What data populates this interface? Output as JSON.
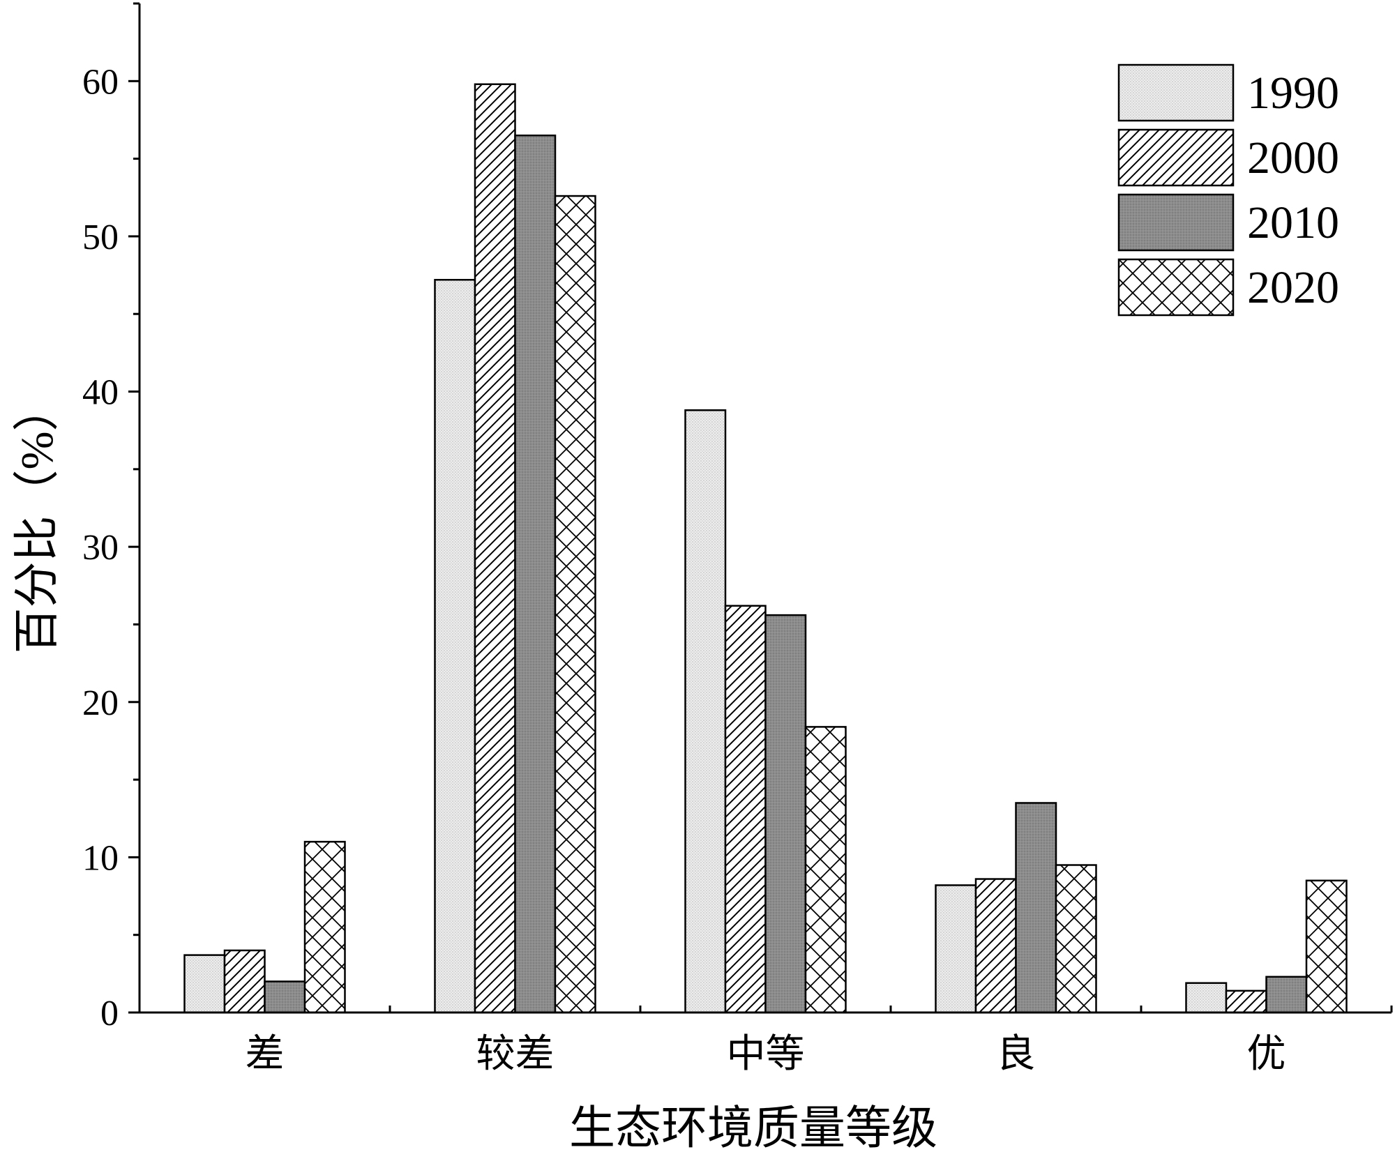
{
  "chart_data": {
    "type": "bar",
    "title": "",
    "xlabel": "生态环境质量等级",
    "ylabel": "百分比（%）",
    "categories": [
      "差",
      "较差",
      "中等",
      "良",
      "优"
    ],
    "ylim": [
      0,
      65
    ],
    "yticks": [
      0,
      10,
      20,
      30,
      40,
      50,
      60
    ],
    "grid": false,
    "legend_position": "top-right",
    "series": [
      {
        "name": "1990",
        "pattern": "dots",
        "values": [
          3.7,
          47.2,
          38.8,
          8.2,
          1.9
        ]
      },
      {
        "name": "2000",
        "pattern": "diagonal",
        "values": [
          4.0,
          59.8,
          26.2,
          8.6,
          1.4
        ]
      },
      {
        "name": "2010",
        "pattern": "dark-gray",
        "values": [
          2.0,
          56.5,
          25.6,
          13.5,
          2.3
        ]
      },
      {
        "name": "2020",
        "pattern": "crosshatch",
        "values": [
          11.0,
          52.6,
          18.4,
          9.5,
          8.5
        ]
      }
    ],
    "colors": {
      "axis": "#000000",
      "dots_fill": "#ededed",
      "diagonal_fill": "#ffffff",
      "dark_fill": "#8c8c8c",
      "crosshatch_fill": "#ffffff"
    }
  }
}
